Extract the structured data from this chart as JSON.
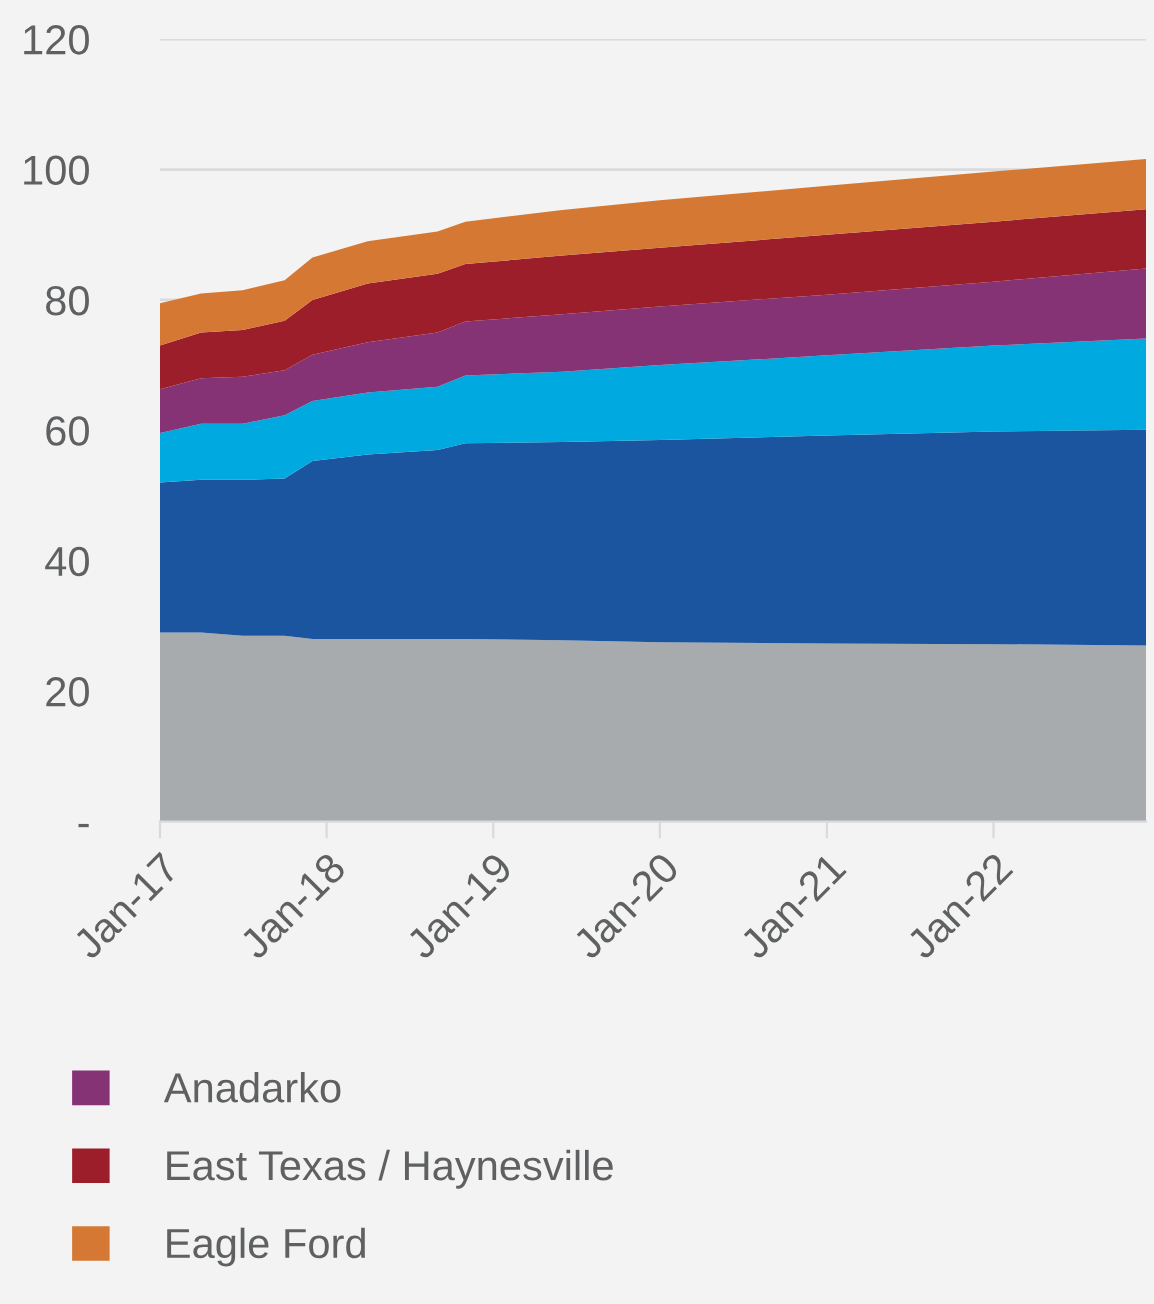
{
  "chart_data": {
    "type": "area",
    "stacked": true,
    "x": [
      "2017-01",
      "2017-04",
      "2017-07",
      "2017-10",
      "2017-12",
      "2018-04",
      "2018-09",
      "2018-11",
      "2019-06",
      "2020-01",
      "2021-01",
      "2022-01",
      "2022-12"
    ],
    "series": [
      {
        "color": "#a7abae",
        "values": [
          29,
          29,
          28.5,
          28.5,
          28,
          28,
          28,
          28,
          27.8,
          27.5,
          27.3,
          27.2,
          27
        ]
      },
      {
        "color": "#1b549f",
        "values": [
          23,
          23.4,
          23.9,
          24.1,
          27.3,
          28.3,
          29,
          30,
          30.4,
          31,
          31.9,
          32.6,
          33.1
        ]
      },
      {
        "color": "#00a9df",
        "values": [
          7.6,
          8.6,
          8.6,
          9.7,
          9.2,
          9.5,
          9.7,
          10.4,
          10.8,
          11.5,
          12.3,
          13.2,
          14
        ]
      },
      {
        "name": "Anadarko",
        "color": "#863375",
        "values": [
          6.7,
          7,
          7.2,
          6.9,
          7.1,
          7.7,
          8.3,
          8.3,
          8.8,
          9,
          9.3,
          9.8,
          10.7
        ]
      },
      {
        "name": "East Texas / Haynesville",
        "color": "#9d1e2b",
        "values": [
          6.7,
          7,
          7.2,
          7.6,
          8.4,
          9,
          9,
          8.8,
          9,
          9,
          9.2,
          9.2,
          9.1
        ]
      },
      {
        "name": "Eagle Ford",
        "color": "#d57833",
        "values": [
          6.5,
          6,
          6.1,
          6.2,
          6.5,
          6.5,
          6.5,
          6.5,
          7,
          7.3,
          7.5,
          7.7,
          7.7
        ]
      }
    ],
    "xlim": [
      "2017-01",
      "2022-12"
    ],
    "xticks": [
      {
        "value": "2017-01",
        "label": "Jan-17"
      },
      {
        "value": "2018-01",
        "label": "Jan-18"
      },
      {
        "value": "2019-01",
        "label": "Jan-19"
      },
      {
        "value": "2020-01",
        "label": "Jan-20"
      },
      {
        "value": "2021-01",
        "label": "Jan-21"
      },
      {
        "value": "2022-01",
        "label": "Jan-22"
      }
    ],
    "ylim": [
      0,
      120
    ],
    "yticks": [
      {
        "value": 0,
        "label": "-"
      },
      20,
      40,
      60,
      80,
      100,
      120
    ],
    "grid": "y",
    "legend": "bottom"
  }
}
